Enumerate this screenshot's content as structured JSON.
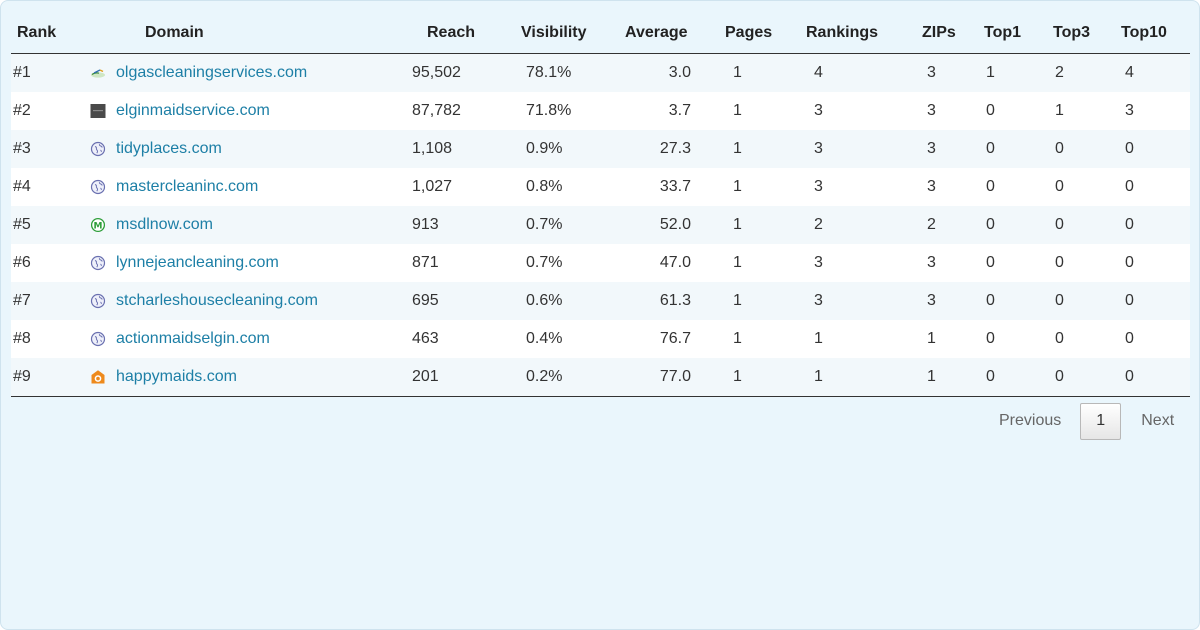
{
  "table": {
    "headers": {
      "rank": "Rank",
      "domain": "Domain",
      "reach": "Reach",
      "visibility": "Visibility",
      "average": "Average",
      "pages": "Pages",
      "rankings": "Rankings",
      "zips": "ZIPs",
      "top1": "Top1",
      "top3": "Top3",
      "top10": "Top10"
    },
    "rows": [
      {
        "rank": "#1",
        "icon": "broom-logo-icon",
        "domain": "olgascleaningservices.com",
        "reach": "95,502",
        "visibility": "78.1%",
        "average": "3.0",
        "pages": "1",
        "rankings": "4",
        "zips": "3",
        "top1": "1",
        "top3": "2",
        "top10": "4"
      },
      {
        "rank": "#2",
        "icon": "dark-square-logo-icon",
        "domain": "elginmaidservice.com",
        "reach": "87,782",
        "visibility": "71.8%",
        "average": "3.7",
        "pages": "1",
        "rankings": "3",
        "zips": "3",
        "top1": "0",
        "top3": "1",
        "top10": "3"
      },
      {
        "rank": "#3",
        "icon": "globe-icon",
        "domain": "tidyplaces.com",
        "reach": "1,108",
        "visibility": "0.9%",
        "average": "27.3",
        "pages": "1",
        "rankings": "3",
        "zips": "3",
        "top1": "0",
        "top3": "0",
        "top10": "0"
      },
      {
        "rank": "#4",
        "icon": "globe-icon",
        "domain": "mastercleaninc.com",
        "reach": "1,027",
        "visibility": "0.8%",
        "average": "33.7",
        "pages": "1",
        "rankings": "3",
        "zips": "3",
        "top1": "0",
        "top3": "0",
        "top10": "0"
      },
      {
        "rank": "#5",
        "icon": "m-circle-logo-icon",
        "domain": "msdlnow.com",
        "reach": "913",
        "visibility": "0.7%",
        "average": "52.0",
        "pages": "1",
        "rankings": "2",
        "zips": "2",
        "top1": "0",
        "top3": "0",
        "top10": "0"
      },
      {
        "rank": "#6",
        "icon": "globe-icon",
        "domain": "lynnejeancleaning.com",
        "reach": "871",
        "visibility": "0.7%",
        "average": "47.0",
        "pages": "1",
        "rankings": "3",
        "zips": "3",
        "top1": "0",
        "top3": "0",
        "top10": "0"
      },
      {
        "rank": "#7",
        "icon": "globe-icon",
        "domain": "stcharleshousecleaning.com",
        "reach": "695",
        "visibility": "0.6%",
        "average": "61.3",
        "pages": "1",
        "rankings": "3",
        "zips": "3",
        "top1": "0",
        "top3": "0",
        "top10": "0"
      },
      {
        "rank": "#8",
        "icon": "globe-icon",
        "domain": "actionmaidselgin.com",
        "reach": "463",
        "visibility": "0.4%",
        "average": "76.7",
        "pages": "1",
        "rankings": "1",
        "zips": "1",
        "top1": "0",
        "top3": "0",
        "top10": "0"
      },
      {
        "rank": "#9",
        "icon": "orange-house-logo-icon",
        "domain": "happymaids.com",
        "reach": "201",
        "visibility": "0.2%",
        "average": "77.0",
        "pages": "1",
        "rankings": "1",
        "zips": "1",
        "top1": "0",
        "top3": "0",
        "top10": "0"
      }
    ]
  },
  "pagination": {
    "previous_label": "Previous",
    "current_page": "1",
    "next_label": "Next"
  },
  "colors": {
    "panel_background": "#eaf6fc",
    "link": "#1d7fa6",
    "row_alt": "#f2f8fb"
  }
}
